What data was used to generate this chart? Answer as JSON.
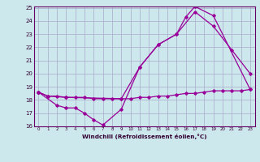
{
  "line1": {
    "x": [
      0,
      1,
      2,
      3,
      4,
      5,
      6,
      7,
      8,
      9,
      10,
      11,
      12,
      13,
      14,
      15,
      16,
      17,
      18,
      19,
      20,
      21,
      22,
      23
    ],
    "y": [
      18.6,
      18.3,
      null,
      18.2,
      null,
      null,
      null,
      null,
      null,
      18.1,
      null,
      20.5,
      null,
      22.2,
      null,
      23.0,
      24.3,
      25.1,
      null,
      24.4,
      null,
      null,
      null,
      18.8
    ]
  },
  "line2": {
    "x": [
      0,
      1,
      2,
      3,
      4,
      5,
      6,
      7,
      8,
      9,
      10,
      11,
      12,
      13,
      14,
      15,
      16,
      17,
      18,
      19,
      20,
      21,
      22,
      23
    ],
    "y": [
      18.6,
      null,
      17.6,
      17.4,
      17.4,
      17.0,
      16.5,
      16.1,
      null,
      17.3,
      null,
      20.5,
      null,
      22.2,
      null,
      23.0,
      null,
      24.7,
      null,
      23.6,
      null,
      21.8,
      null,
      20.0
    ]
  },
  "line3": {
    "x": [
      0,
      1,
      2,
      3,
      4,
      5,
      6,
      7,
      8,
      9,
      10,
      11,
      12,
      13,
      14,
      15,
      16,
      17,
      18,
      19,
      20,
      21,
      22,
      23
    ],
    "y": [
      18.6,
      18.3,
      18.3,
      18.2,
      18.2,
      18.2,
      18.1,
      18.1,
      18.1,
      18.1,
      18.1,
      18.2,
      18.2,
      18.3,
      18.3,
      18.4,
      18.5,
      18.5,
      18.6,
      18.7,
      18.7,
      18.7,
      18.7,
      18.8
    ]
  },
  "bg_color": "#cce8ec",
  "line_color": "#990099",
  "grid_color": "#aaaacc",
  "xlabel": "Windchill (Refroidissement éolien,°C)",
  "xlim": [
    -0.5,
    23.5
  ],
  "ylim": [
    16,
    25
  ],
  "yticks": [
    16,
    17,
    18,
    19,
    20,
    21,
    22,
    23,
    24,
    25
  ],
  "xticks": [
    0,
    1,
    2,
    3,
    4,
    5,
    6,
    7,
    8,
    9,
    10,
    11,
    12,
    13,
    14,
    15,
    16,
    17,
    18,
    19,
    20,
    21,
    22,
    23
  ]
}
